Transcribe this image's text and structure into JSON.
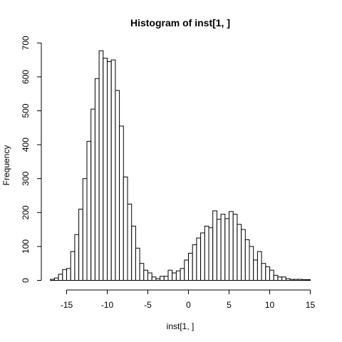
{
  "chart_data": {
    "type": "bar",
    "subtype": "histogram",
    "title": "Histogram of inst[1, ]",
    "xlabel": "inst[1, ]",
    "ylabel": "Frequency",
    "xlim": [
      -17,
      15
    ],
    "ylim": [
      0,
      700
    ],
    "xticks": [
      -15,
      -10,
      -5,
      0,
      5,
      10,
      15
    ],
    "yticks": [
      0,
      100,
      200,
      300,
      400,
      500,
      600,
      700
    ],
    "bin_width": 0.5,
    "bin_start": -17,
    "values": [
      3,
      7,
      18,
      32,
      35,
      85,
      135,
      210,
      300,
      410,
      505,
      595,
      677,
      655,
      645,
      650,
      560,
      455,
      305,
      225,
      160,
      95,
      50,
      30,
      22,
      10,
      5,
      12,
      12,
      30,
      22,
      28,
      35,
      60,
      80,
      105,
      125,
      140,
      160,
      155,
      205,
      180,
      195,
      182,
      203,
      195,
      165,
      150,
      120,
      100,
      60,
      85,
      50,
      40,
      30,
      15,
      10,
      10,
      5,
      3,
      3,
      3,
      2,
      2
    ],
    "grid": false,
    "legend": "none"
  }
}
